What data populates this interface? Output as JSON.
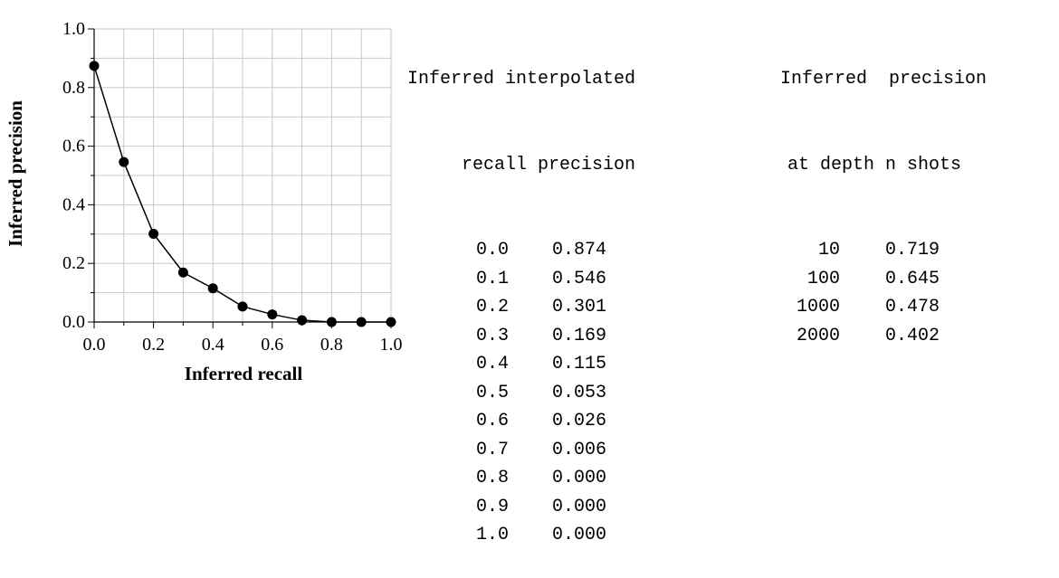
{
  "chart_data": {
    "type": "line",
    "title": "",
    "xlabel": "Inferred recall",
    "ylabel": "Inferred precision",
    "xlim": [
      0.0,
      1.0
    ],
    "ylim": [
      0.0,
      1.0
    ],
    "grid": true,
    "x_ticks": [
      "0.0",
      "0.2",
      "0.4",
      "0.6",
      "0.8",
      "1.0"
    ],
    "y_ticks": [
      "0.0",
      "0.2",
      "0.4",
      "0.6",
      "0.8",
      "1.0"
    ],
    "series": [
      {
        "x": [
          0.0,
          0.1,
          0.2,
          0.3,
          0.4,
          0.5,
          0.6,
          0.7,
          0.8,
          0.9,
          1.0
        ],
        "values": [
          0.874,
          0.546,
          0.301,
          0.169,
          0.115,
          0.053,
          0.026,
          0.006,
          0.0,
          0.0,
          0.0
        ],
        "marker": "filled-circle",
        "color": "#000000"
      }
    ]
  },
  "table_interpolated": {
    "header_line1": "Inferred interpolated",
    "header_line2": "recall precision",
    "rows": [
      [
        "0.0",
        "0.874"
      ],
      [
        "0.1",
        "0.546"
      ],
      [
        "0.2",
        "0.301"
      ],
      [
        "0.3",
        "0.169"
      ],
      [
        "0.4",
        "0.115"
      ],
      [
        "0.5",
        "0.053"
      ],
      [
        "0.6",
        "0.026"
      ],
      [
        "0.7",
        "0.006"
      ],
      [
        "0.8",
        "0.000"
      ],
      [
        "0.9",
        "0.000"
      ],
      [
        "1.0",
        "0.000"
      ]
    ]
  },
  "table_depth": {
    "header_line1": "Inferred  precision",
    "header_line2": "at depth n shots",
    "rows": [
      [
        "10",
        "0.719"
      ],
      [
        "100",
        "0.645"
      ],
      [
        "1000",
        "0.478"
      ],
      [
        "2000",
        "0.402"
      ]
    ]
  }
}
